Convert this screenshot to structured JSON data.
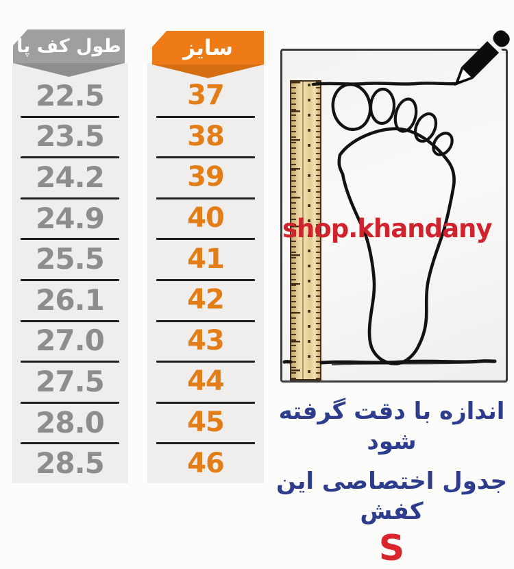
{
  "table": {
    "columns": [
      {
        "header": "طول کف پا",
        "badge_color": "#9f9f9f",
        "value_color": "#8d8d8d",
        "values": [
          "22.5",
          "23.5",
          "24.2",
          "24.9",
          "25.5",
          "26.1",
          "27.0",
          "27.5",
          "28.0",
          "28.5"
        ]
      },
      {
        "header": "سایز",
        "badge_color": "#ee7b16",
        "value_color": "#e37d17",
        "values": [
          "37",
          "38",
          "39",
          "40",
          "41",
          "42",
          "43",
          "44",
          "45",
          "46"
        ]
      }
    ]
  },
  "chart_data": {
    "type": "table",
    "columns": [
      "سایز",
      "طول کف پا"
    ],
    "rows": [
      [
        37,
        22.5
      ],
      [
        38,
        23.5
      ],
      [
        39,
        24.2
      ],
      [
        40,
        24.9
      ],
      [
        41,
        25.5
      ],
      [
        42,
        26.1
      ],
      [
        43,
        27.0
      ],
      [
        44,
        27.5
      ],
      [
        45,
        28.0
      ],
      [
        46,
        28.5
      ]
    ]
  },
  "illustration": {
    "watermark": "shop.khandany",
    "watermark_color": "#d0232e"
  },
  "caption": {
    "line1": "اندازه با دقت گرفته شود",
    "line2": "جدول اختصاصی این کفش",
    "letter": "S",
    "text_color": "#2e3c8e",
    "letter_color": "#d9252b"
  }
}
